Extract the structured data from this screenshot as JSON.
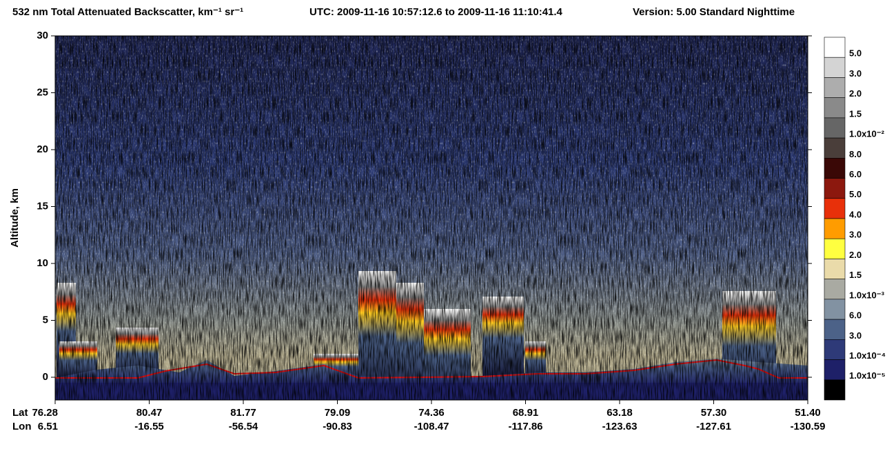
{
  "chart_data": {
    "type": "lidar-curtain",
    "title": "532 nm Total Attenuated Backscatter, km⁻¹ sr⁻¹",
    "subtitle": "UTC:  2009-11-16 10:57:12.6  to  2009-11-16 11:10:41.4",
    "version": "Version: 5.00  Standard  Nighttime",
    "ylabel": "Altitude, km",
    "ylim": [
      -2,
      30
    ],
    "yticks": [
      0,
      5,
      10,
      15,
      20,
      25,
      30
    ],
    "lat_label": "Lat",
    "lon_label": "Lon",
    "lat": [
      "76.28",
      "80.47",
      "81.77",
      "79.09",
      "74.36",
      "68.91",
      "63.18",
      "57.30",
      "51.40"
    ],
    "lon": [
      "6.51",
      "-16.55",
      "-56.54",
      "-90.83",
      "-108.47",
      "-117.86",
      "-123.63",
      "-127.61",
      "-130.59"
    ],
    "colorbar": {
      "colors": [
        "#ffffff",
        "#d4d4d4",
        "#adadad",
        "#8a8a8a",
        "#666666",
        "#4a3e3a",
        "#3a0806",
        "#8c180e",
        "#e8300a",
        "#ff9c00",
        "#ffff40",
        "#eadbaa",
        "#a9aaa2",
        "#8292a2",
        "#4c6288",
        "#2e3a78",
        "#1e2068",
        "#000000"
      ],
      "labels": [
        "5.0",
        "3.0",
        "2.0",
        "1.5",
        "1.0x10⁻²",
        "8.0",
        "6.0",
        "5.0",
        "4.0",
        "3.0",
        "2.0",
        "1.5",
        "1.0x10⁻³",
        "6.0",
        "3.0",
        "1.0x10⁻⁴",
        "1.0x10⁻⁵"
      ]
    }
  }
}
